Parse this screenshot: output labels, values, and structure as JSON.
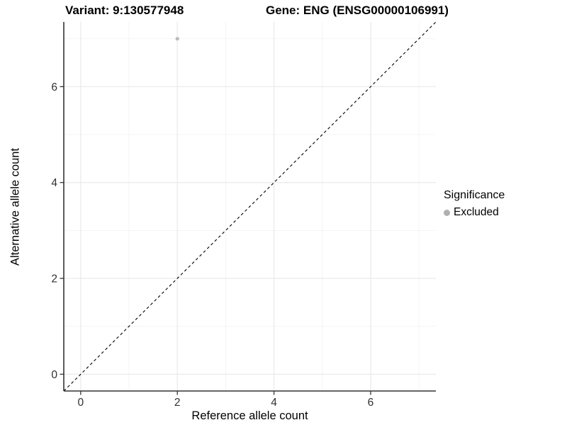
{
  "chart_data": {
    "type": "scatter",
    "titles": {
      "variant": "Variant: 9:130577948",
      "gene": "Gene: ENG (ENSG00000106991)"
    },
    "xlabel": "Reference allele count",
    "ylabel": "Alternative allele count",
    "x_ticks": [
      0,
      2,
      4,
      6
    ],
    "y_ticks": [
      0,
      2,
      4,
      6
    ],
    "x_minor_ticks": [
      1,
      3,
      5,
      7
    ],
    "y_minor_ticks": [
      1,
      3,
      5,
      7
    ],
    "xlim": [
      -0.35,
      7.35
    ],
    "ylim": [
      -0.35,
      7.35
    ],
    "grid": "major+minor",
    "identity_line": {
      "style": "dashed",
      "equation": "y = x",
      "from": [
        -0.35,
        -0.35
      ],
      "to": [
        7.35,
        7.35
      ],
      "color": "#000000"
    },
    "series": [
      {
        "name": "Excluded",
        "color": "#bababa",
        "point_radius": 2.6,
        "points": [
          [
            2,
            7
          ]
        ]
      }
    ],
    "legend": {
      "title": "Significance",
      "position": "right",
      "items": [
        {
          "label": "Excluded",
          "color": "#b0b0b0"
        }
      ]
    },
    "colors": {
      "background": "#ffffff",
      "grid_major": "#ebebeb",
      "grid_minor": "#f4f4f4",
      "axis": "#333333",
      "tick_label": "#303030",
      "text": "#000000"
    }
  }
}
